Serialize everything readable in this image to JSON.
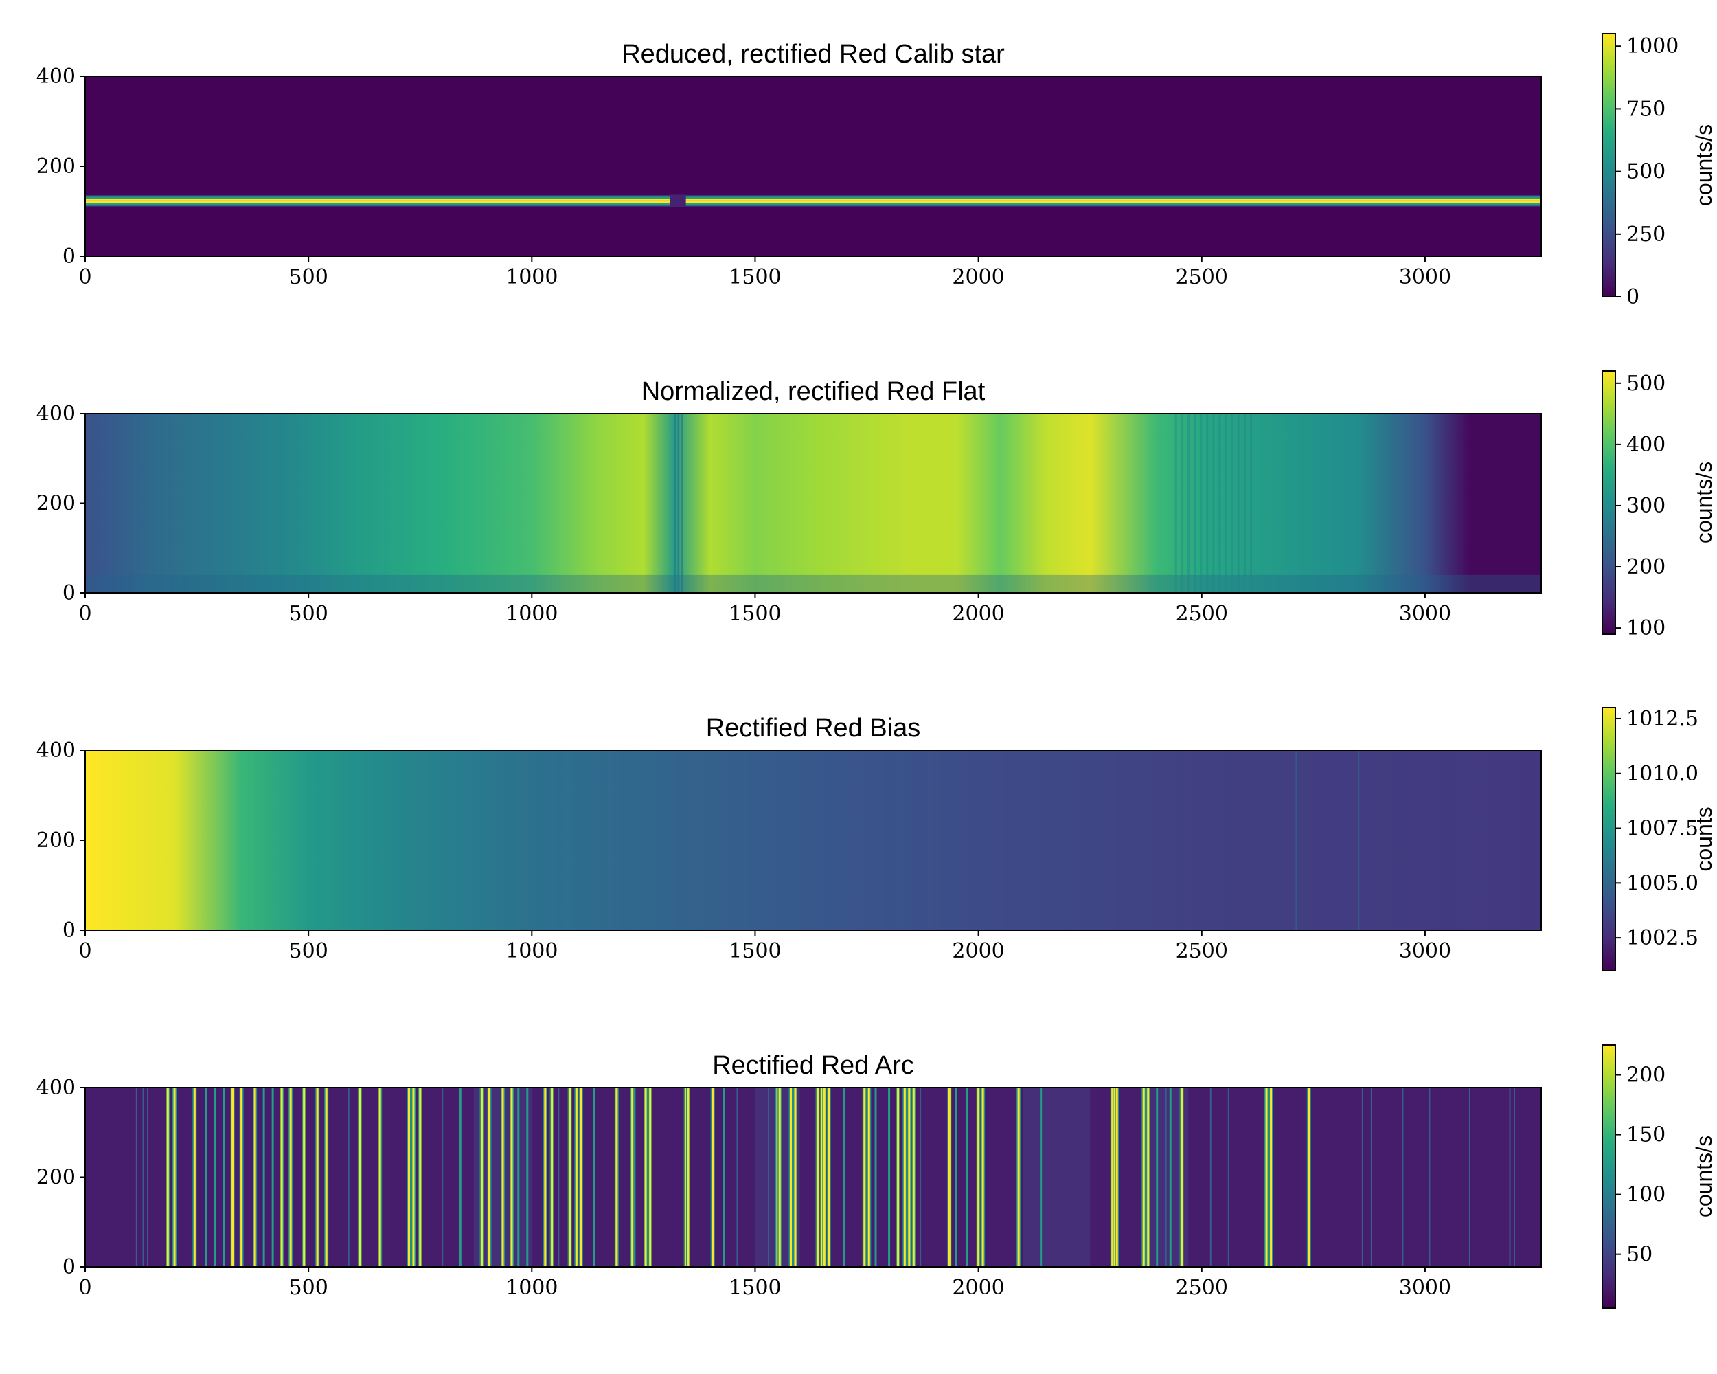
{
  "chart_data": [
    {
      "type": "heatmap",
      "title": "Reduced, rectified Red Calib star",
      "x_ticks": [
        "0",
        "500",
        "1000",
        "1500",
        "2000",
        "2500",
        "3000"
      ],
      "y_ticks": [
        "0",
        "200",
        "400"
      ],
      "xlim": [
        0,
        3260
      ],
      "ylim": [
        0,
        400
      ],
      "colorbar": {
        "label": "counts/s",
        "ticks": [
          "0",
          "250",
          "500",
          "750",
          "1000"
        ],
        "range": [
          0,
          1050
        ]
      },
      "colormap": "viridis",
      "features": {
        "trace_row": 123,
        "trace_value": 1050,
        "background_value": 0
      }
    },
    {
      "type": "heatmap",
      "title": "Normalized, rectified Red Flat",
      "x_ticks": [
        "0",
        "500",
        "1000",
        "1500",
        "2000",
        "2500",
        "3000"
      ],
      "y_ticks": [
        "0",
        "200",
        "400"
      ],
      "xlim": [
        0,
        3260
      ],
      "ylim": [
        0,
        400
      ],
      "colorbar": {
        "label": "counts/s",
        "ticks": [
          "100",
          "200",
          "300",
          "400",
          "500"
        ],
        "range": [
          90,
          520
        ]
      },
      "colormap": "viridis",
      "profile_x": [
        0,
        150,
        450,
        620,
        800,
        1000,
        1150,
        1250,
        1320,
        1400,
        1500,
        1650,
        1850,
        1950,
        2050,
        2150,
        2250,
        2400,
        2500,
        2700,
        2850,
        3000,
        3100,
        3260
      ],
      "profile_value": [
        200,
        240,
        290,
        330,
        360,
        390,
        450,
        470,
        330,
        470,
        440,
        460,
        480,
        480,
        420,
        480,
        500,
        380,
        350,
        320,
        300,
        200,
        100,
        100
      ]
    },
    {
      "type": "heatmap",
      "title": "Rectified Red Bias",
      "x_ticks": [
        "0",
        "500",
        "1000",
        "1500",
        "2000",
        "2500",
        "3000"
      ],
      "y_ticks": [
        "0",
        "200",
        "400"
      ],
      "xlim": [
        0,
        3260
      ],
      "ylim": [
        0,
        400
      ],
      "colorbar": {
        "label": "counts",
        "ticks": [
          "1002.5",
          "1005.0",
          "1007.5",
          "1010.0",
          "1012.5"
        ],
        "range": [
          1001,
          1013
        ]
      },
      "colormap": "viridis",
      "profile_x": [
        0,
        200,
        350,
        500,
        700,
        1000,
        1500,
        2000,
        2500,
        3260
      ],
      "profile_value": [
        1013,
        1012.5,
        1009,
        1007.5,
        1006.5,
        1005.5,
        1004.5,
        1003.8,
        1003.3,
        1003
      ]
    },
    {
      "type": "heatmap",
      "title": "Rectified Red Arc",
      "x_ticks": [
        "0",
        "500",
        "1000",
        "1500",
        "2000",
        "2500",
        "3000"
      ],
      "y_ticks": [
        "0",
        "200",
        "400"
      ],
      "xlim": [
        0,
        3260
      ],
      "ylim": [
        0,
        400
      ],
      "colorbar": {
        "label": "counts/s",
        "ticks": [
          "50",
          "100",
          "150",
          "200"
        ],
        "range": [
          5,
          225
        ]
      },
      "colormap": "viridis",
      "lines_bright": [
        185,
        200,
        245,
        330,
        350,
        380,
        440,
        460,
        490,
        520,
        540,
        615,
        660,
        725,
        735,
        750,
        888,
        905,
        935,
        955,
        1030,
        1045,
        1085,
        1100,
        1110,
        1190,
        1225,
        1255,
        1265,
        1345,
        1350,
        1405,
        1550,
        1555,
        1580,
        1590,
        1640,
        1650,
        1655,
        1665,
        1745,
        1755,
        1820,
        1835,
        1845,
        1855,
        1935,
        2000,
        2010,
        2090,
        2300,
        2305,
        2310,
        2370,
        2380,
        2455,
        2645,
        2655,
        2740
      ],
      "lines_medium": [
        270,
        290,
        310,
        400,
        420,
        840,
        970,
        990,
        1140,
        1230,
        1430,
        1700,
        1770,
        1800,
        1950,
        1975,
        2140,
        2400,
        2430
      ],
      "lines_faint": [
        115,
        130,
        140,
        590,
        800,
        1060,
        1460,
        1530,
        1870,
        2420,
        2520,
        2560,
        2860,
        2880,
        2950,
        3010,
        3100,
        3190,
        3200
      ]
    }
  ]
}
